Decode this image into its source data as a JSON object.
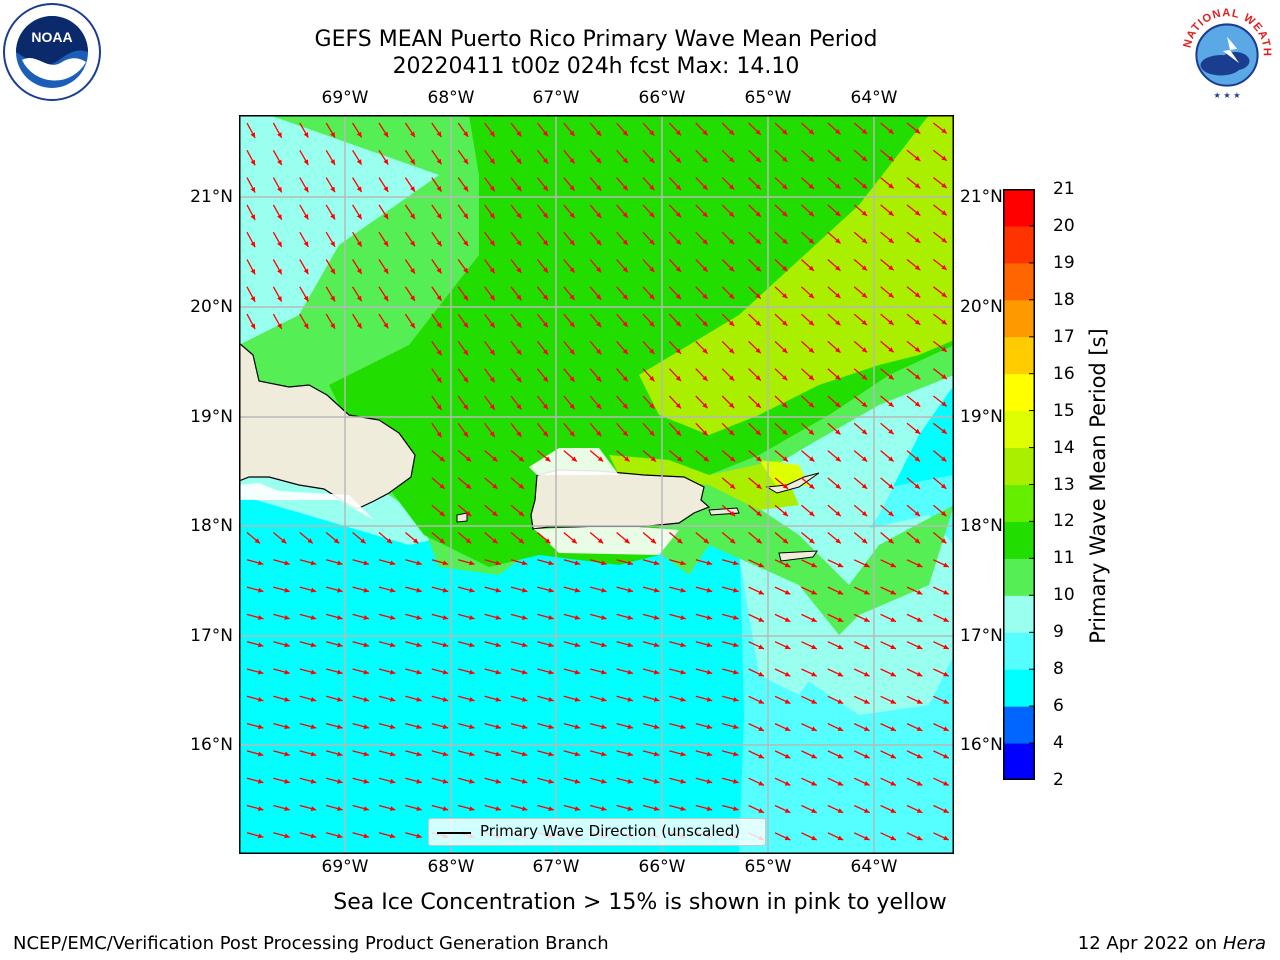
{
  "title": {
    "line1": "GEFS MEAN Puerto Rico Primary Wave Mean Period",
    "line2": "20220411 t00z 024h fcst   Max: 14.10"
  },
  "logos": {
    "left": {
      "icon": "noaa-logo",
      "text": "NOAA"
    },
    "right": {
      "icon": "national-weather-service-logo",
      "text": "NATIONAL WEATHER SERVICE"
    }
  },
  "map": {
    "lon_ticks": [
      "69°W",
      "68°W",
      "67°W",
      "66°W",
      "65°W",
      "64°W"
    ],
    "lat_ticks": [
      "21°N",
      "20°N",
      "19°N",
      "18°N",
      "17°N",
      "16°N"
    ],
    "vector_color": "#ff0000",
    "land_color": "#efecdc",
    "legend_label": "Primary Wave Direction (unscaled)"
  },
  "colorbar": {
    "label": "Primary Wave Mean Period [s]",
    "ticks": [
      "21",
      "20",
      "19",
      "18",
      "17",
      "16",
      "15",
      "14",
      "13",
      "12",
      "11",
      "10",
      "9",
      "8",
      "6",
      "4",
      "2"
    ],
    "colors_bottom_to_top": [
      "#0000ff",
      "#0066ff",
      "#00ffff",
      "#55ffff",
      "#99ffee",
      "#55ee55",
      "#22dd00",
      "#66ee00",
      "#aaee00",
      "#ddff00",
      "#ffff00",
      "#ffcc00",
      "#ff9900",
      "#ff6600",
      "#ff3300",
      "#ff0000"
    ]
  },
  "note": "Sea Ice Concentration > 15% is shown in pink to yellow",
  "footer": {
    "left": "NCEP/EMC/Verification Post Processing Product Generation Branch",
    "date": "12 Apr 2022 on",
    "machine": "Hera"
  }
}
